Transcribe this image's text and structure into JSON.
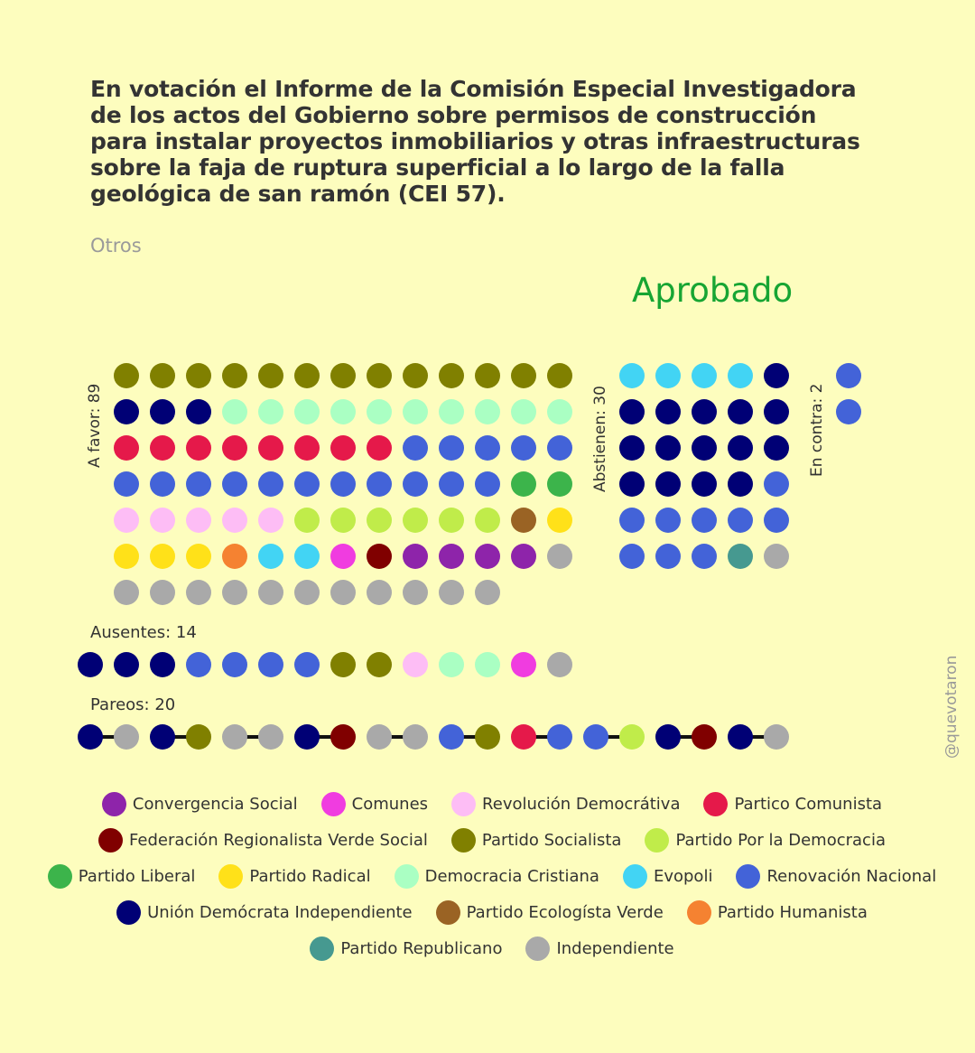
{
  "title": "En votación el Informe de la Comisión Especial Investigadora de los actos del Gobierno sobre permisos de construcción para instalar proyectos inmobiliarios y otras infraestructuras sobre la faja de ruptura superficial a lo largo de la falla geológica de san ramón (CEI 57).",
  "subtitle": "Otros",
  "result": "Aprobado",
  "watermark": "@quevotaron",
  "parties": {
    "CS": {
      "name": "Convergencia Social",
      "color": "#8E24AA"
    },
    "COM": {
      "name": "Comunes",
      "color": "#F03CE0"
    },
    "RD": {
      "name": "Revolución Democrátiva",
      "color": "#FDBDF5"
    },
    "PC": {
      "name": "Partico Comunista",
      "color": "#E5194A"
    },
    "FRVS": {
      "name": "Federación Regionalista Verde Social",
      "color": "#800000"
    },
    "PS": {
      "name": "Partido Socialista",
      "color": "#808000"
    },
    "PPD": {
      "name": "Partido Por la Democracia",
      "color": "#C0EC4A"
    },
    "PL": {
      "name": "Partido Liberal",
      "color": "#3CB44B"
    },
    "PR": {
      "name": "Partido Radical",
      "color": "#FFE119"
    },
    "DC": {
      "name": "Democracia Cristiana",
      "color": "#AAFFC3"
    },
    "EVO": {
      "name": "Evopoli",
      "color": "#42D4F4"
    },
    "RN": {
      "name": "Renovación Nacional",
      "color": "#4363D8"
    },
    "UDI": {
      "name": "Unión Demócrata Independiente",
      "color": "#000075"
    },
    "PEV": {
      "name": "Partido Ecologísta Verde",
      "color": "#9A6324"
    },
    "PH": {
      "name": "Partido Humanista",
      "color": "#F58231"
    },
    "REP": {
      "name": "Partido Republicano",
      "color": "#469990"
    },
    "IND": {
      "name": "Independiente",
      "color": "#A9A9A9"
    }
  },
  "legend_order": [
    "CS",
    "COM",
    "RD",
    "PC",
    "FRVS",
    "PS",
    "PPD",
    "PL",
    "PR",
    "DC",
    "EVO",
    "RN",
    "UDI",
    "PEV",
    "PH",
    "REP",
    "IND"
  ],
  "chart_data": {
    "type": "dot-matrix",
    "title": "En votación el Informe de la Comisión Especial Investigadora de los actos del Gobierno sobre permisos de construcción para instalar proyectos inmobiliarios y otras infraestructuras sobre la faja de ruptura superficial a lo largo de la falla geológica de san ramón (CEI 57).",
    "groups": [
      {
        "label": "A favor: 89",
        "count": 89,
        "columns": 13,
        "members": [
          "PS",
          "PS",
          "PS",
          "PS",
          "PS",
          "PS",
          "PS",
          "PS",
          "PS",
          "PS",
          "PS",
          "PS",
          "PS",
          "UDI",
          "UDI",
          "UDI",
          "DC",
          "DC",
          "DC",
          "DC",
          "DC",
          "DC",
          "DC",
          "DC",
          "DC",
          "DC",
          "PC",
          "PC",
          "PC",
          "PC",
          "PC",
          "PC",
          "PC",
          "PC",
          "RN",
          "RN",
          "RN",
          "RN",
          "RN",
          "RN",
          "RN",
          "RN",
          "RN",
          "RN",
          "RN",
          "RN",
          "RN",
          "RN",
          "RN",
          "RN",
          "PL",
          "PL",
          "RD",
          "RD",
          "RD",
          "RD",
          "RD",
          "PPD",
          "PPD",
          "PPD",
          "PPD",
          "PPD",
          "PPD",
          "PEV",
          "PR",
          "PR",
          "PR",
          "PR",
          "PH",
          "EVO",
          "EVO",
          "COM",
          "FRVS",
          "CS",
          "CS",
          "CS",
          "CS",
          "IND",
          "IND",
          "IND",
          "IND",
          "IND",
          "IND",
          "IND",
          "IND",
          "IND",
          "IND",
          "IND",
          "IND"
        ]
      },
      {
        "label": "Abstienen: 30",
        "count": 30,
        "columns": 5,
        "members": [
          "EVO",
          "EVO",
          "EVO",
          "EVO",
          "UDI",
          "UDI",
          "UDI",
          "UDI",
          "UDI",
          "UDI",
          "UDI",
          "UDI",
          "UDI",
          "UDI",
          "UDI",
          "UDI",
          "UDI",
          "UDI",
          "UDI",
          "RN",
          "RN",
          "RN",
          "RN",
          "RN",
          "RN",
          "RN",
          "RN",
          "RN",
          "REP",
          "IND"
        ]
      },
      {
        "label": "En contra: 2",
        "count": 2,
        "columns": 1,
        "members": [
          "RN",
          "RN"
        ]
      }
    ],
    "ausentes": {
      "label": "Ausentes: 14",
      "count": 14,
      "members": [
        "UDI",
        "UDI",
        "UDI",
        "RN",
        "RN",
        "RN",
        "RN",
        "PS",
        "PS",
        "RD",
        "DC",
        "DC",
        "COM",
        "IND"
      ]
    },
    "pareos": {
      "label": "Pareos: 20",
      "count": 20,
      "pairs": [
        [
          "UDI",
          "IND"
        ],
        [
          "UDI",
          "PS"
        ],
        [
          "IND",
          "IND"
        ],
        [
          "UDI",
          "FRVS"
        ],
        [
          "IND",
          "IND"
        ],
        [
          "RN",
          "PS"
        ],
        [
          "PC",
          "RN"
        ],
        [
          "RN",
          "PPD"
        ],
        [
          "UDI",
          "FRVS"
        ],
        [
          "UDI",
          "IND"
        ]
      ]
    }
  }
}
